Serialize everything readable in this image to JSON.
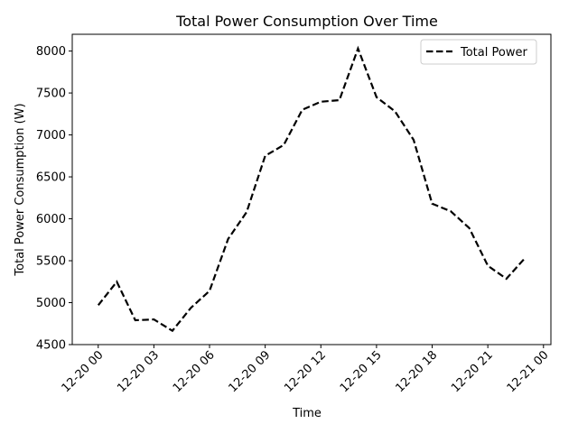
{
  "chart_data": {
    "type": "line",
    "title": "Total Power Consumption Over Time",
    "xlabel": "Time",
    "ylabel": "Total Power Consumption (W)",
    "x": [
      "12-20 00",
      "12-20 01",
      "12-20 02",
      "12-20 03",
      "12-20 04",
      "12-20 05",
      "12-20 06",
      "12-20 07",
      "12-20 08",
      "12-20 09",
      "12-20 10",
      "12-20 11",
      "12-20 12",
      "12-20 13",
      "12-20 14",
      "12-20 15",
      "12-20 16",
      "12-20 17",
      "12-20 18",
      "12-20 19",
      "12-20 20",
      "12-20 21",
      "12-20 22",
      "12-20 23"
    ],
    "xlim": [
      "12-19 22:36",
      "12-21 00:24"
    ],
    "xticks": [
      "12-20 00",
      "12-20 03",
      "12-20 06",
      "12-20 09",
      "12-20 12",
      "12-20 15",
      "12-20 18",
      "12-20 21",
      "12-21 00"
    ],
    "ylim": [
      4500,
      8200
    ],
    "yticks": [
      4500,
      5000,
      5500,
      6000,
      6500,
      7000,
      7500,
      8000
    ],
    "series": [
      {
        "name": "Total Power",
        "line_style": "dashed",
        "color": "#000000",
        "values": [
          4970,
          5250,
          4790,
          4800,
          4665,
          4940,
          5140,
          5760,
          6080,
          6750,
          6880,
          7300,
          7395,
          7415,
          8030,
          7450,
          7280,
          6940,
          6180,
          6090,
          5890,
          5440,
          5285,
          5530
        ]
      }
    ],
    "legend": {
      "placement": "top-right"
    },
    "grid": false
  }
}
